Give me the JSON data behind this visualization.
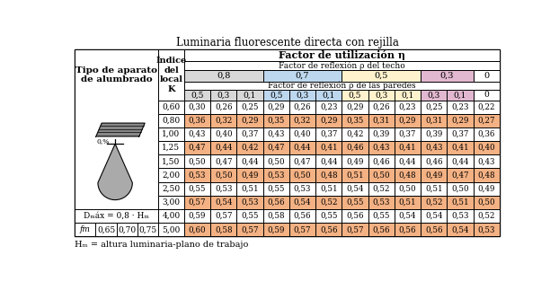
{
  "title": "Luminaria fluorescente directa con rejilla",
  "footnote": "Hₘ = altura luminaria-plano de trabajo",
  "header1": "Factor de utilización η",
  "header2": "Factor de reflexión ρ del techo",
  "header3": "Factor de reflexión ρ de las paredes",
  "techo_values": [
    "0,8",
    "0,7",
    "0,5",
    "0,3",
    "0"
  ],
  "techo_spans": [
    3,
    3,
    3,
    2,
    1
  ],
  "techo_colors": [
    "#d8d8d8",
    "#bdd7ee",
    "#fff2cc",
    "#e2b8d0",
    "#ffffff"
  ],
  "pared_values": [
    "0,5",
    "0,3",
    "0,1",
    "0,5",
    "0,3",
    "0,1",
    "0,5",
    "0,3",
    "0,1",
    "0,3",
    "0,1",
    "0"
  ],
  "pared_colors": [
    "#d8d8d8",
    "#d8d8d8",
    "#d8d8d8",
    "#bdd7ee",
    "#bdd7ee",
    "#bdd7ee",
    "#fff2cc",
    "#fff2cc",
    "#fff2cc",
    "#e2b8d0",
    "#e2b8d0",
    "#ffffff"
  ],
  "col1_label": "Tipo de aparato\nde alumbrado",
  "col2_label": "Índice\ndel\nlocal\nK",
  "K_values": [
    "0,60",
    "0,80",
    "1,00",
    "1,25",
    "1,50",
    "2,00",
    "2,50",
    "3,00",
    "4,00",
    "5,00"
  ],
  "table_data": [
    [
      "0,30",
      "0,26",
      "0,25",
      "0,29",
      "0,26",
      "0,23",
      "0,29",
      "0,26",
      "0,23",
      "0,25",
      "0,23",
      "0,22"
    ],
    [
      "0,36",
      "0,32",
      "0,29",
      "0,35",
      "0,32",
      "0,29",
      "0,35",
      "0,31",
      "0,29",
      "0,31",
      "0,29",
      "0,27"
    ],
    [
      "0,43",
      "0,40",
      "0,37",
      "0,43",
      "0,40",
      "0,37",
      "0,42",
      "0,39",
      "0,37",
      "0,39",
      "0,37",
      "0,36"
    ],
    [
      "0,47",
      "0,44",
      "0,42",
      "0,47",
      "0,44",
      "0,41",
      "0,46",
      "0,43",
      "0,41",
      "0,43",
      "0,41",
      "0,40"
    ],
    [
      "0,50",
      "0,47",
      "0,44",
      "0,50",
      "0,47",
      "0,44",
      "0,49",
      "0,46",
      "0,44",
      "0,46",
      "0,44",
      "0,43"
    ],
    [
      "0,53",
      "0,50",
      "0,49",
      "0,53",
      "0,50",
      "0,48",
      "0,51",
      "0,50",
      "0,48",
      "0,49",
      "0,47",
      "0,48"
    ],
    [
      "0,55",
      "0,53",
      "0,51",
      "0,55",
      "0,53",
      "0,51",
      "0,54",
      "0,52",
      "0,50",
      "0,51",
      "0,50",
      "0,49"
    ],
    [
      "0,57",
      "0,54",
      "0,53",
      "0,56",
      "0,54",
      "0,52",
      "0,55",
      "0,53",
      "0,51",
      "0,52",
      "0,51",
      "0,50"
    ],
    [
      "0,59",
      "0,57",
      "0,55",
      "0,58",
      "0,56",
      "0,55",
      "0,56",
      "0,55",
      "0,54",
      "0,54",
      "0,53",
      "0,52"
    ],
    [
      "0,60",
      "0,58",
      "0,57",
      "0,59",
      "0,57",
      "0,56",
      "0,57",
      "0,56",
      "0,56",
      "0,56",
      "0,54",
      "0,53"
    ]
  ],
  "row_colors": [
    "#ffffff",
    "#f4b183",
    "#ffffff",
    "#f4b183",
    "#ffffff",
    "#f4b183",
    "#ffffff",
    "#f4b183",
    "#ffffff",
    "#f4b183"
  ],
  "dmax_label": "Dₘáx = 0,8 · Hₘ",
  "fm_label": "fm",
  "fm_values": [
    "0,65",
    "0,70",
    "0,75"
  ],
  "bg_color": "#ffffff",
  "border_color": "#000000"
}
